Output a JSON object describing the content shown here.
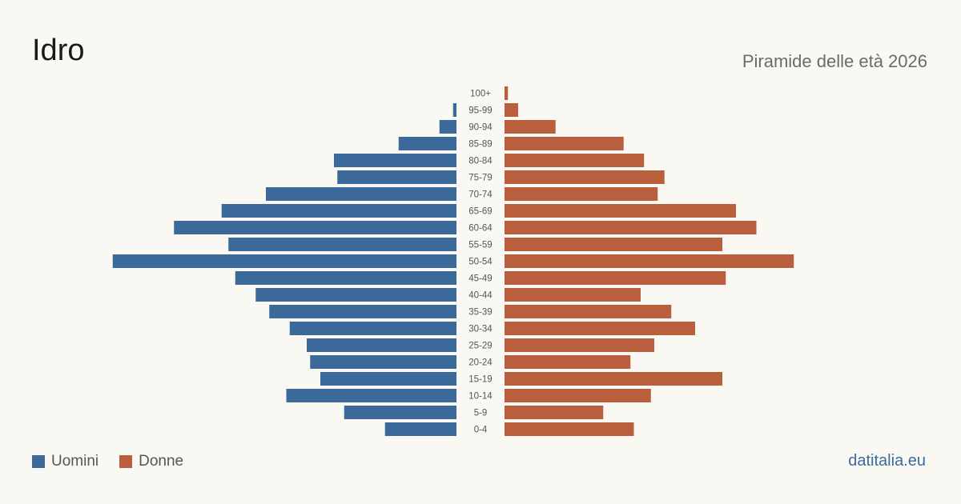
{
  "title": "Idro",
  "subtitle": "Piramide delle età 2026",
  "brand": "datitalia.eu",
  "colors": {
    "men": "#3b6a9a",
    "women": "#b95f3d",
    "label": "#555555"
  },
  "legend": {
    "men_label": "Uomini",
    "women_label": "Donne"
  },
  "chart_data": {
    "type": "bar",
    "orientation": "horizontal-pyramid",
    "categories": [
      "100+",
      "95-99",
      "90-94",
      "85-89",
      "80-84",
      "75-79",
      "70-74",
      "65-69",
      "60-64",
      "55-59",
      "50-54",
      "45-49",
      "40-44",
      "35-39",
      "30-34",
      "25-29",
      "20-24",
      "15-19",
      "10-14",
      "5-9",
      "0-4"
    ],
    "series": [
      {
        "name": "Uomini",
        "values": [
          0,
          1,
          5,
          17,
          36,
          35,
          56,
          69,
          83,
          67,
          101,
          65,
          59,
          55,
          49,
          44,
          43,
          40,
          50,
          33,
          21
        ]
      },
      {
        "name": "Donne",
        "values": [
          1,
          4,
          15,
          35,
          41,
          47,
          45,
          68,
          74,
          64,
          85,
          65,
          40,
          49,
          56,
          44,
          37,
          64,
          43,
          29,
          38
        ]
      }
    ],
    "legend_position": "bottom-left",
    "grid": false
  }
}
